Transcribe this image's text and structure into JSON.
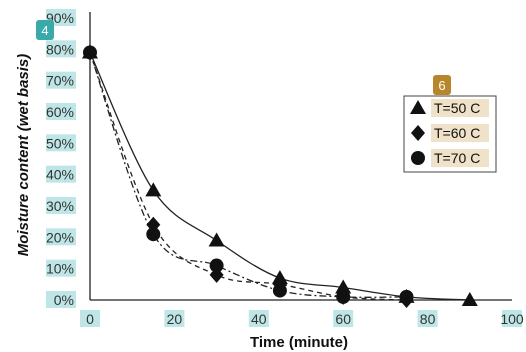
{
  "chart_data": {
    "type": "scatter",
    "xlabel": "Time (minute)",
    "ylabel": "Moisture content (wet basis)",
    "xlim": [
      0,
      100
    ],
    "ylim": [
      0,
      90
    ],
    "x_ticks": [
      "0",
      "20",
      "40",
      "60",
      "80",
      "100"
    ],
    "y_ticks": [
      "0%",
      "10%",
      "20%",
      "30%",
      "40%",
      "50%",
      "60%",
      "70%",
      "80%",
      "90%"
    ],
    "grid": false,
    "legend_position": "top-right",
    "series": [
      {
        "name": "T=50 C",
        "marker": "triangle",
        "line": "solid",
        "x": [
          0,
          15,
          30,
          45,
          60,
          75,
          90
        ],
        "y": [
          79,
          35,
          19,
          7,
          4,
          1,
          0
        ]
      },
      {
        "name": "T=60 C",
        "marker": "diamond",
        "line": "dashed",
        "x": [
          0,
          15,
          30,
          45,
          60,
          75
        ],
        "y": [
          79,
          24,
          8,
          5,
          1,
          0
        ]
      },
      {
        "name": "T=70 C",
        "marker": "circle",
        "line": "dash-dot",
        "x": [
          0,
          15,
          30,
          45,
          60,
          75
        ],
        "y": [
          79,
          21,
          11,
          3,
          1,
          1
        ]
      }
    ],
    "badges": {
      "y_axis_badge": "4",
      "legend_badge": "6"
    },
    "colors": {
      "marker": "#111111",
      "badge_teal": "#3aa9a9",
      "badge_gold": "#b8862a",
      "tick_highlight": "#bfe6e6",
      "legend_highlight": "#efe2c9"
    }
  }
}
